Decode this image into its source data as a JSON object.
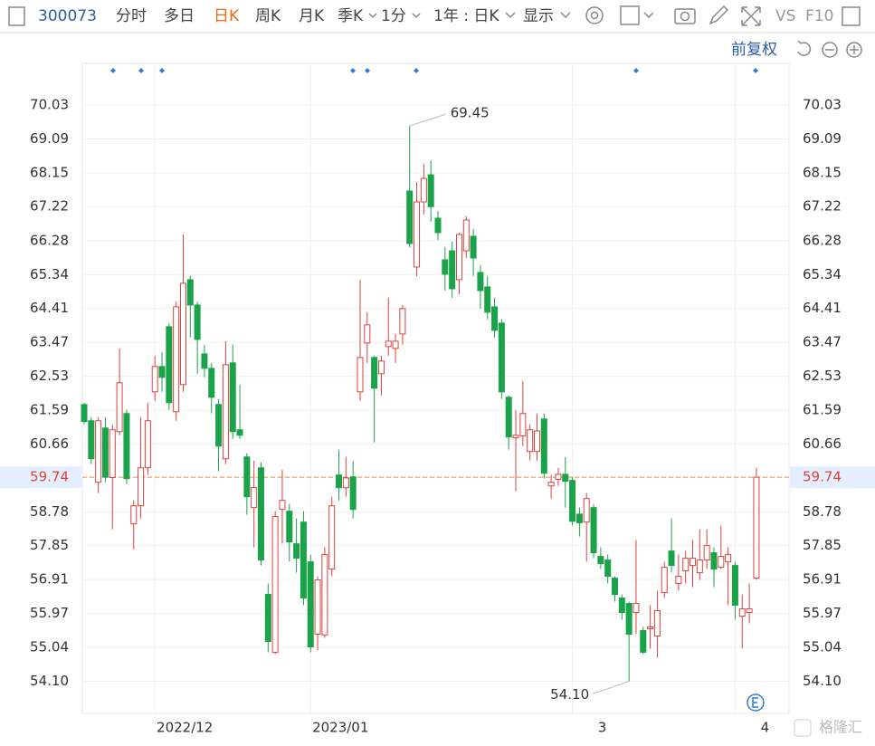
{
  "toolbar": {
    "code": "300073",
    "tabs": [
      "分时",
      "多日",
      "日K",
      "周K",
      "月K",
      "季K",
      "1分"
    ],
    "range": "1年 : 日K",
    "display": "显示",
    "vs": "VS",
    "f10": "F10"
  },
  "adjust": "前复权",
  "watermark": "格隆汇",
  "chart_data": {
    "type": "candlestick",
    "up_color": "#e0413a",
    "down_color": "#1aa34a",
    "categories": [
      null,
      null,
      null,
      null,
      null,
      null,
      null,
      null,
      null,
      null,
      "2022/12",
      null,
      null,
      null,
      null,
      null,
      null,
      null,
      null,
      null,
      null,
      null,
      null,
      null,
      null,
      null,
      null,
      null,
      null,
      null,
      null,
      null,
      "2023/01",
      null,
      null,
      null,
      null,
      null,
      null,
      null,
      null,
      null,
      null,
      null,
      null,
      null,
      null,
      null,
      null,
      null,
      null,
      null,
      null,
      null,
      null,
      null,
      null,
      null,
      null,
      null,
      null,
      null,
      null,
      null,
      null,
      null,
      null,
      null,
      null,
      "3",
      null,
      null,
      null,
      null,
      null,
      null,
      null,
      null,
      null,
      null,
      null,
      null,
      null,
      null,
      null,
      null,
      null,
      null,
      null,
      null,
      null,
      null,
      "4",
      null,
      null,
      null
    ],
    "open": [
      61.75,
      61.3,
      59.6,
      61.1,
      59.73,
      61.0,
      61.5,
      58.45,
      58.95,
      60.0,
      62.1,
      62.8,
      63.9,
      61.55,
      62.3,
      65.2,
      64.5,
      63.15,
      62.75,
      61.75,
      60.25,
      62.9,
      61.05,
      60.3,
      58.9,
      60.0,
      56.5,
      54.9,
      58.85,
      58.8,
      57.9,
      58.5,
      57.4,
      55.4,
      55.38,
      57.2,
      59.8,
      59.45,
      59.75,
      62.1,
      63.45,
      63.05,
      62.6,
      63.35,
      63.3,
      63.7,
      67.65,
      65.55,
      67.35,
      68.1,
      66.9,
      65.75,
      66.0,
      65.2,
      66.0,
      66.4,
      65.4,
      65.0,
      64.45,
      64.0,
      61.95,
      60.83,
      60.88,
      60.45,
      60.45,
      61.35,
      59.5,
      59.68,
      59.82,
      59.65,
      58.72,
      58.5,
      58.9,
      57.55,
      57.45,
      56.95,
      56.4,
      56.25,
      56.0,
      55.5,
      55.55,
      55.35,
      56.55,
      57.7,
      56.8,
      57.15,
      57.3,
      57.1,
      57.45,
      57.65,
      57.25,
      57.4,
      57.3,
      55.9,
      56.0,
      56.95
    ],
    "high": [
      61.8,
      61.4,
      61.4,
      61.4,
      61.2,
      63.3,
      61.6,
      59.1,
      61.4,
      61.8,
      63.1,
      63.2,
      64.0,
      64.6,
      66.45,
      65.3,
      64.6,
      63.4,
      62.9,
      61.9,
      63.5,
      63.4,
      62.3,
      60.4,
      60.2,
      60.15,
      56.8,
      58.8,
      59.95,
      59.0,
      58.6,
      58.8,
      57.6,
      57.0,
      57.8,
      59.2,
      60.5,
      60.3,
      60.2,
      65.2,
      64.3,
      63.1,
      63.1,
      64.7,
      63.7,
      64.5,
      69.45,
      67.9,
      68.4,
      68.5,
      67.1,
      66.1,
      66.25,
      66.5,
      66.95,
      66.6,
      65.6,
      65.3,
      64.7,
      64.1,
      62.0,
      61.6,
      62.4,
      61.2,
      61.5,
      61.5,
      59.8,
      60.0,
      60.3,
      59.75,
      58.9,
      59.3,
      59.0,
      57.8,
      57.6,
      57.0,
      56.5,
      56.3,
      58.0,
      55.6,
      56.2,
      56.6,
      57.4,
      58.6,
      57.6,
      57.7,
      58.0,
      58.3,
      58.3,
      57.8,
      58.4,
      57.8,
      57.4,
      56.5,
      56.8,
      60.0
    ],
    "low": [
      61.2,
      60.1,
      59.3,
      59.6,
      58.3,
      60.9,
      59.55,
      57.75,
      58.6,
      59.8,
      61.85,
      62.1,
      61.6,
      61.3,
      62.1,
      63.6,
      62.6,
      62.5,
      61.5,
      59.9,
      60.1,
      60.8,
      60.8,
      58.7,
      57.8,
      57.3,
      54.9,
      54.85,
      57.9,
      57.4,
      57.1,
      56.2,
      54.9,
      54.95,
      55.3,
      57.0,
      59.1,
      59.2,
      58.6,
      61.85,
      62.9,
      60.7,
      62.0,
      63.1,
      62.9,
      63.4,
      66.1,
      65.3,
      67.0,
      66.8,
      66.3,
      64.9,
      64.7,
      64.8,
      65.8,
      65.3,
      64.4,
      64.1,
      63.6,
      61.9,
      60.5,
      59.35,
      60.6,
      60.2,
      60.2,
      59.7,
      59.15,
      59.5,
      58.9,
      58.4,
      58.1,
      57.4,
      57.5,
      57.2,
      56.8,
      56.3,
      55.8,
      54.1,
      55.4,
      54.85,
      55.0,
      54.75,
      56.4,
      57.1,
      56.6,
      56.8,
      56.7,
      56.9,
      57.2,
      56.7,
      57.2,
      56.2,
      55.8,
      55.0,
      55.7,
      56.9
    ],
    "close": [
      61.28,
      60.25,
      61.3,
      59.74,
      61.05,
      62.35,
      59.7,
      58.95,
      60.0,
      61.3,
      62.8,
      62.5,
      61.8,
      64.45,
      65.1,
      64.5,
      63.55,
      62.75,
      61.95,
      60.6,
      62.85,
      61.0,
      60.9,
      59.2,
      59.45,
      57.45,
      55.2,
      58.65,
      59.1,
      57.95,
      57.5,
      56.4,
      55.05,
      56.9,
      57.6,
      58.95,
      59.45,
      59.72,
      58.85,
      63.05,
      63.95,
      62.2,
      62.95,
      63.5,
      63.5,
      64.4,
      66.2,
      67.35,
      68.0,
      67.22,
      66.5,
      65.35,
      64.95,
      66.45,
      66.85,
      65.8,
      64.9,
      64.3,
      63.8,
      62.1,
      60.85,
      60.9,
      61.5,
      61.05,
      61.02,
      59.85,
      59.6,
      59.82,
      59.63,
      58.52,
      58.48,
      59.15,
      57.65,
      57.35,
      57.0,
      56.5,
      56.0,
      55.4,
      56.25,
      54.9,
      55.6,
      56.05,
      57.25,
      57.3,
      57.0,
      57.5,
      57.5,
      57.45,
      57.85,
      57.2,
      57.55,
      57.6,
      56.2,
      56.1,
      56.1,
      59.74
    ],
    "current_price": 59.74,
    "annotations": [
      {
        "value": 69.45,
        "label": "69.45"
      },
      {
        "value": 54.1,
        "label": "54.10"
      }
    ],
    "ylim": [
      53.21,
      71.18
    ],
    "yticks": [
      70.03,
      69.09,
      68.15,
      67.22,
      66.28,
      65.34,
      64.41,
      63.47,
      62.53,
      61.59,
      60.66,
      59.74,
      58.78,
      57.85,
      56.91,
      55.97,
      55.04,
      {
        "value": 54.1,
        "label": "54.10"
      }
    ],
    "grid": true
  }
}
